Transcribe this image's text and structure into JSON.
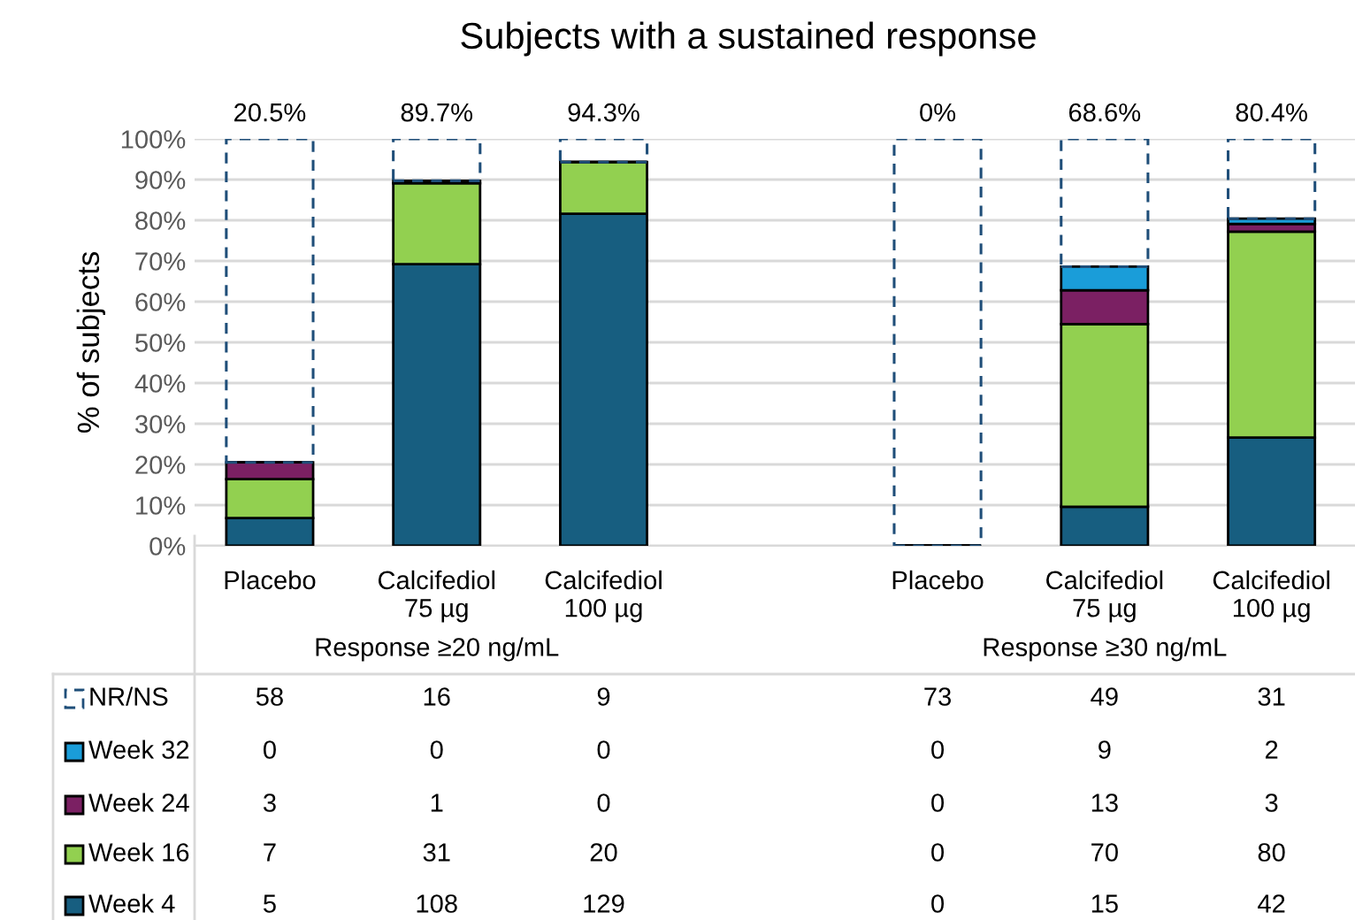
{
  "chart_data": {
    "type": "bar",
    "title": "Subjects with a sustained response",
    "ylabel": "% of subjects",
    "categories": [
      "Placebo",
      "Calcifediol\n75 µg",
      "Calcifediol\n100 µg",
      null,
      "Placebo",
      "Calcifediol\n75 µg",
      "Calcifediol\n100 µg"
    ],
    "stacked": true,
    "series": [
      {
        "name": "Week 4",
        "color": "#175e80",
        "values": [
          6.8,
          69.2,
          81.6,
          null,
          0,
          9.6,
          26.6
        ]
      },
      {
        "name": "Week 16",
        "color": "#92d050",
        "values": [
          9.6,
          19.9,
          12.7,
          null,
          0,
          44.9,
          50.6
        ]
      },
      {
        "name": "Week 24",
        "color": "#7b2063",
        "values": [
          4.1,
          0.6,
          0,
          null,
          0,
          8.3,
          1.9
        ]
      },
      {
        "name": "Week 32",
        "color": "#1a9dd9",
        "values": [
          0,
          0,
          0,
          null,
          0,
          5.8,
          1.3
        ]
      },
      {
        "name": "NR/NS",
        "color": "#1f4e79",
        "line_style": "dashed",
        "values": [
          79.5,
          10.3,
          5.7,
          null,
          100,
          31.4,
          19.6
        ]
      }
    ],
    "ylim": [
      0,
      100
    ],
    "yticks": [
      {
        "value": 0,
        "label": "0%"
      },
      {
        "value": 10,
        "label": "10%"
      },
      {
        "value": 20,
        "label": "20%"
      },
      {
        "value": 30,
        "label": "30%"
      },
      {
        "value": 40,
        "label": "40%"
      },
      {
        "value": 50,
        "label": "50%"
      },
      {
        "value": 60,
        "label": "60%"
      },
      {
        "value": 70,
        "label": "70%"
      },
      {
        "value": 80,
        "label": "80%"
      },
      {
        "value": 90,
        "label": "90%"
      },
      {
        "value": 100,
        "label": "100%"
      }
    ],
    "grid": "y",
    "legend": "bottom left",
    "annotations": [
      "Response ≥20 ng/mL",
      "Response ≥30 ng/mL",
      "20.5%",
      "89.7%",
      "94.3%",
      "0%",
      "68.6%",
      "80.4%",
      "58",
      "16",
      "9",
      "73",
      "49",
      "31",
      "0",
      "0",
      "0",
      "0",
      "9",
      "2",
      "3",
      "1",
      "0",
      "0",
      "13",
      "3",
      "7",
      "31",
      "20",
      "0",
      "70",
      "80",
      "5",
      "108",
      "129",
      "0",
      "15",
      "42"
    ]
  }
}
